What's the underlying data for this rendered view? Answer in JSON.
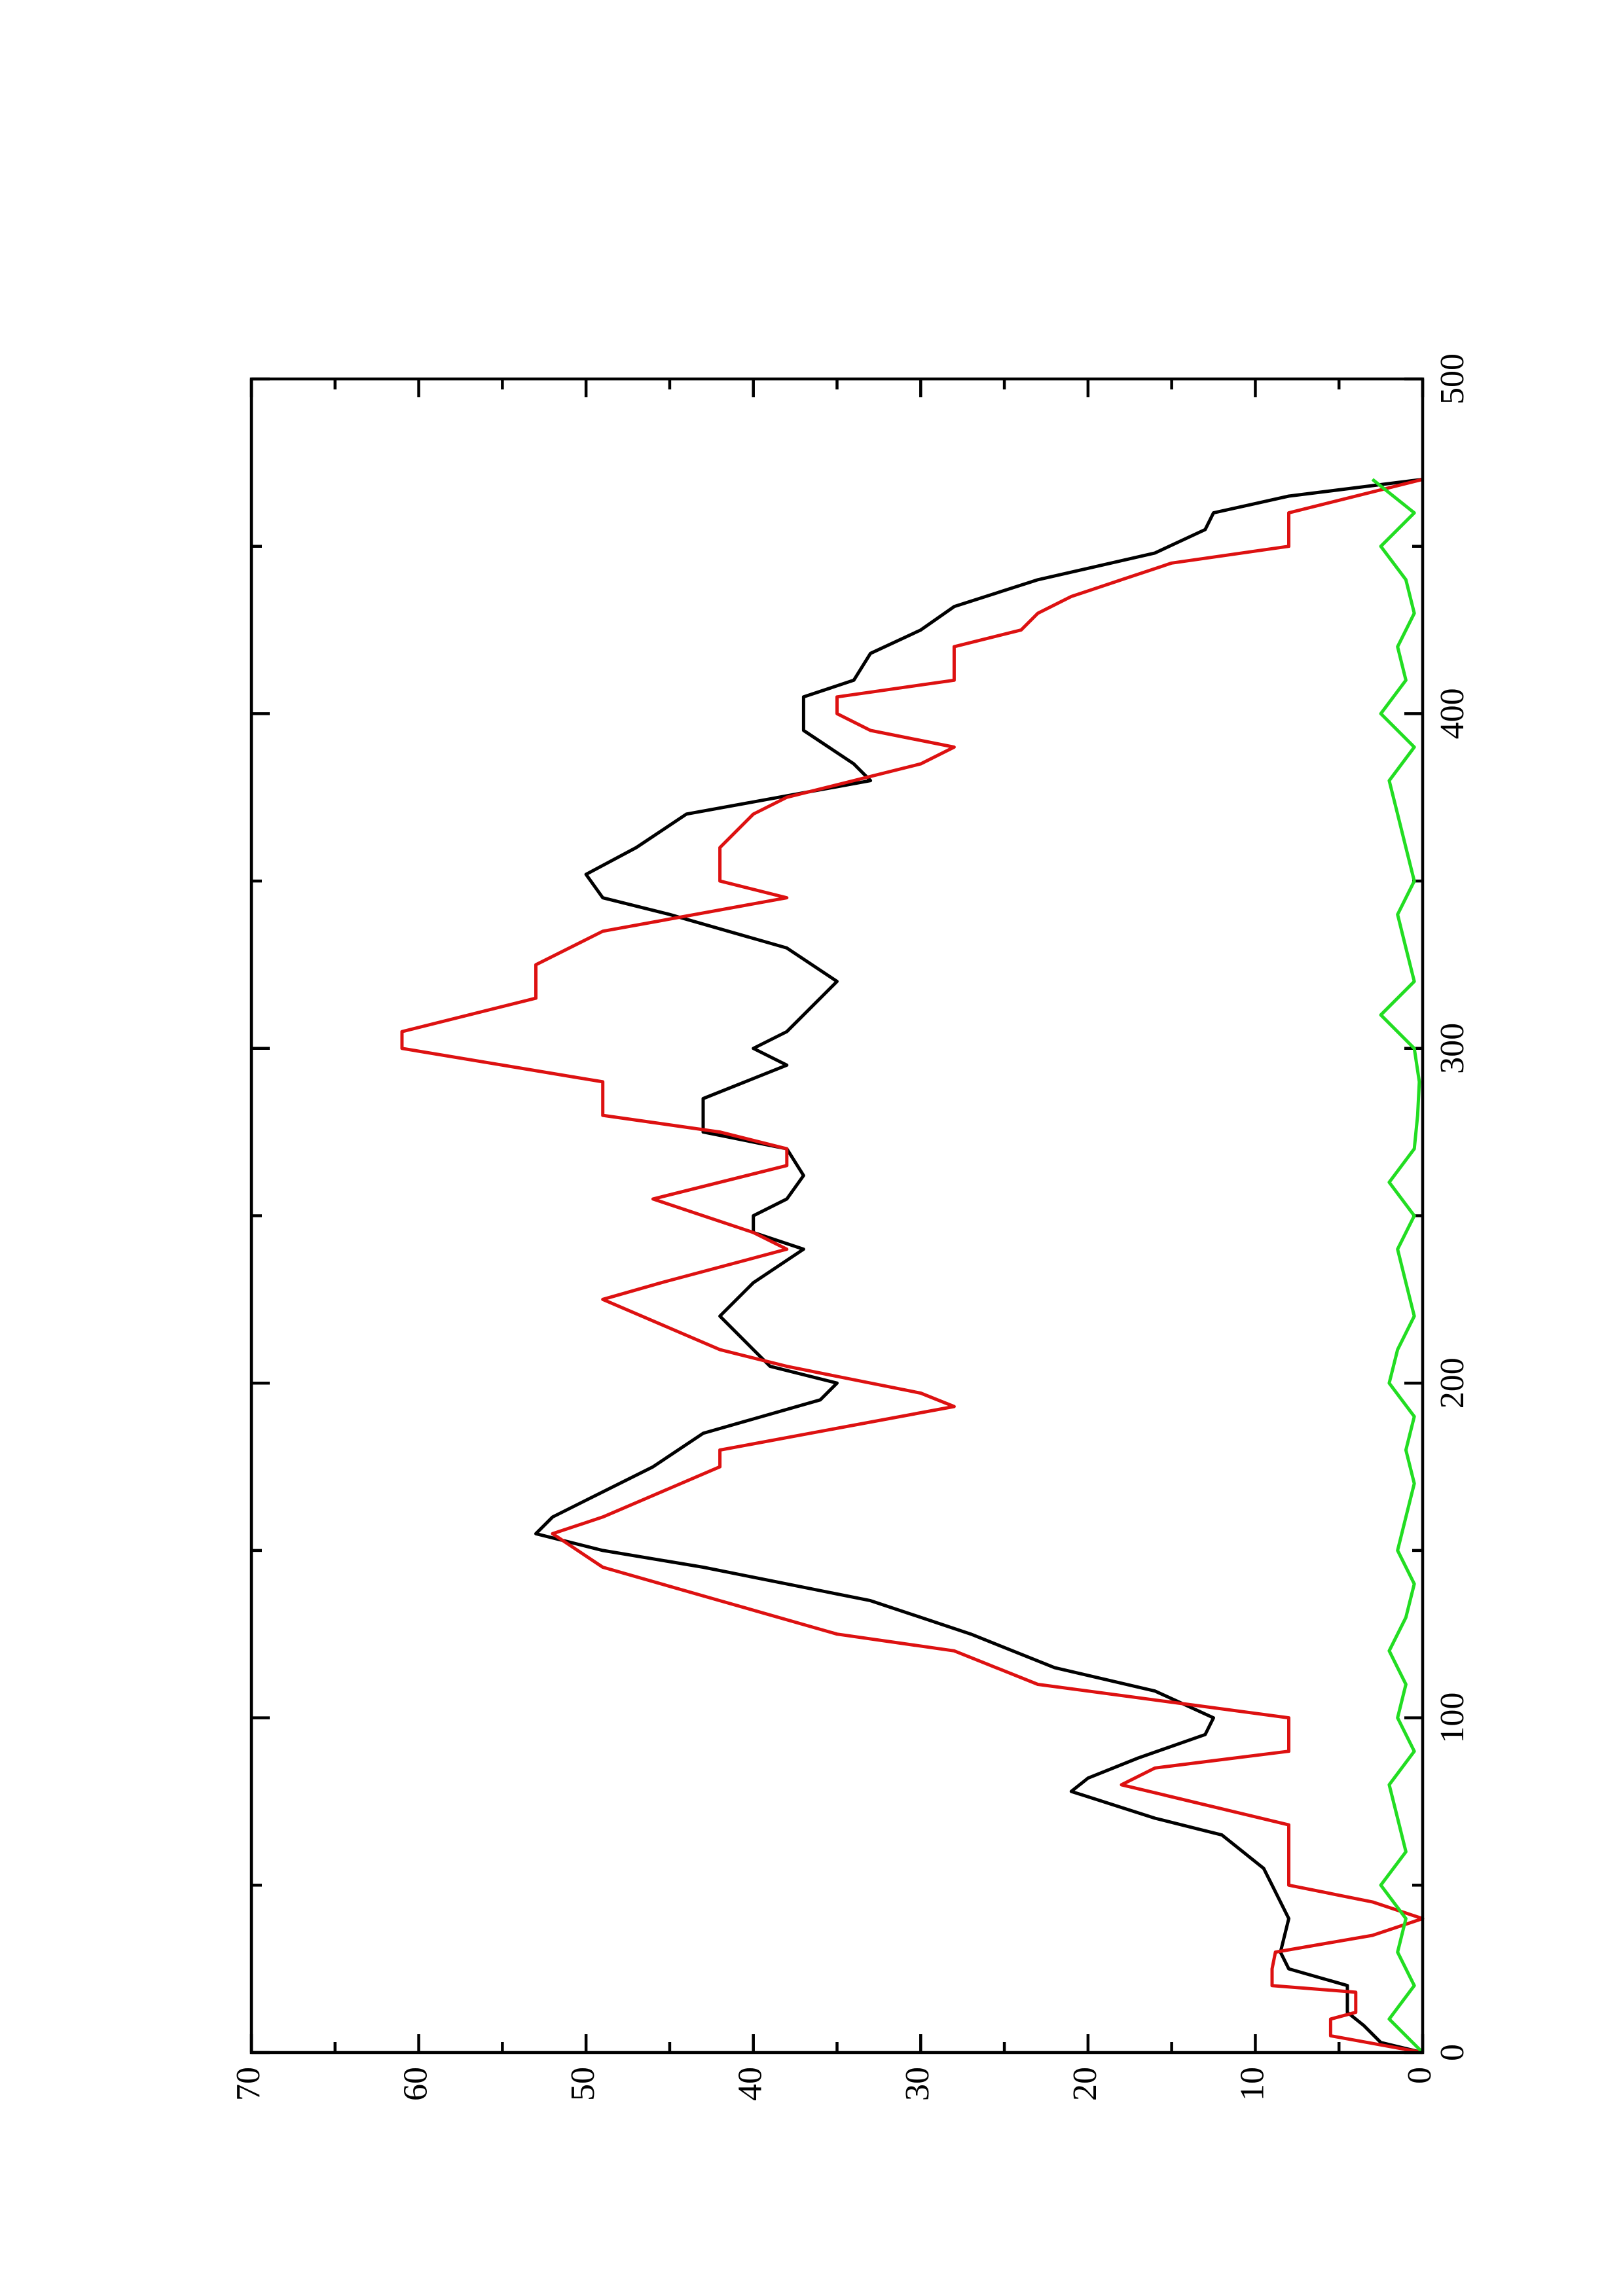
{
  "chart_data": {
    "type": "line",
    "xlim": [
      0,
      500
    ],
    "xticks": [
      0,
      100,
      200,
      300,
      400,
      500
    ],
    "x_minor_ticks": [
      50,
      150,
      250,
      350,
      450
    ],
    "ylim": [
      0,
      70
    ],
    "yticks": [
      0,
      10,
      20,
      30,
      40,
      50,
      60,
      70
    ],
    "y_minor_ticks": [
      5,
      15,
      25,
      35,
      45,
      55,
      65
    ],
    "series": [
      {
        "color": "#000000",
        "x": [
          0,
          3,
          8,
          12,
          20,
          25,
          30,
          40,
          50,
          55,
          65,
          70,
          78,
          82,
          88,
          95,
          100,
          108,
          115,
          125,
          135,
          145,
          150,
          155,
          160,
          165,
          175,
          185,
          195,
          200,
          205,
          210,
          220,
          230,
          240,
          245,
          250,
          255,
          262,
          270,
          275,
          285,
          295,
          300,
          305,
          315,
          320,
          330,
          340,
          345,
          352,
          360,
          370,
          380,
          385,
          395,
          405,
          410,
          418,
          425,
          432,
          440,
          448,
          455,
          460,
          465,
          470
        ],
        "values": [
          0,
          2.5,
          3.5,
          4.5,
          4.5,
          8,
          8.5,
          8,
          9,
          9.5,
          12,
          16,
          21,
          20,
          17,
          13,
          12.5,
          16,
          22,
          27,
          33,
          43,
          49,
          53,
          52,
          50,
          46,
          43,
          36,
          35,
          39,
          40,
          42,
          40,
          37,
          40,
          40,
          38,
          37,
          38,
          43,
          43,
          38,
          40,
          38,
          36,
          35,
          38,
          45,
          49,
          50,
          47,
          44,
          33,
          34,
          37,
          37,
          34,
          33,
          30,
          28,
          23,
          16,
          13,
          12.5,
          8,
          0
        ]
      },
      {
        "color": "#dd1111",
        "x": [
          0,
          5,
          10,
          12,
          18,
          20,
          25,
          30,
          35,
          40,
          45,
          50,
          60,
          68,
          80,
          85,
          90,
          100,
          110,
          120,
          125,
          135,
          145,
          155,
          160,
          175,
          180,
          193,
          197,
          205,
          210,
          225,
          230,
          240,
          245,
          255,
          265,
          270,
          275,
          280,
          290,
          300,
          305,
          315,
          325,
          335,
          345,
          350,
          360,
          370,
          375,
          385,
          390,
          395,
          400,
          405,
          410,
          420,
          425,
          430,
          435,
          440,
          445,
          450,
          460,
          470
        ],
        "values": [
          0,
          5.5,
          5.5,
          4,
          4,
          9,
          9,
          8.8,
          3,
          0,
          3,
          8,
          8,
          8,
          18,
          16,
          8,
          8,
          23,
          28,
          35,
          42,
          49,
          52,
          49,
          42,
          42,
          28,
          30,
          38,
          42,
          49,
          45.5,
          38,
          40,
          46,
          38,
          38,
          42,
          49,
          49,
          61,
          61,
          53,
          53,
          49,
          38,
          42,
          42,
          40,
          38,
          30,
          28,
          33,
          35,
          35,
          28,
          28,
          24,
          23,
          21,
          18,
          15,
          8,
          8,
          0
        ]
      },
      {
        "color": "#22dd22",
        "x": [
          0,
          10,
          20,
          30,
          40,
          50,
          60,
          70,
          80,
          90,
          100,
          110,
          120,
          130,
          140,
          150,
          160,
          170,
          180,
          190,
          200,
          210,
          220,
          230,
          240,
          250,
          260,
          270,
          280,
          290,
          300,
          310,
          320,
          330,
          340,
          350,
          360,
          370,
          380,
          390,
          400,
          410,
          420,
          430,
          440,
          450,
          460,
          470
        ],
        "values": [
          0,
          2,
          0.5,
          1.5,
          1,
          2.5,
          1,
          1.5,
          2,
          0.5,
          1.5,
          1,
          2,
          1,
          0.5,
          1.5,
          1,
          0.5,
          1,
          0.5,
          2,
          1.5,
          0.5,
          1,
          1.5,
          0.5,
          2,
          0.5,
          0.3,
          0.2,
          0.5,
          2.5,
          0.5,
          1,
          1.5,
          0.5,
          1,
          1.5,
          2,
          0.5,
          2.5,
          1,
          1.5,
          0.5,
          1,
          2.5,
          0.5,
          3
        ]
      }
    ]
  }
}
